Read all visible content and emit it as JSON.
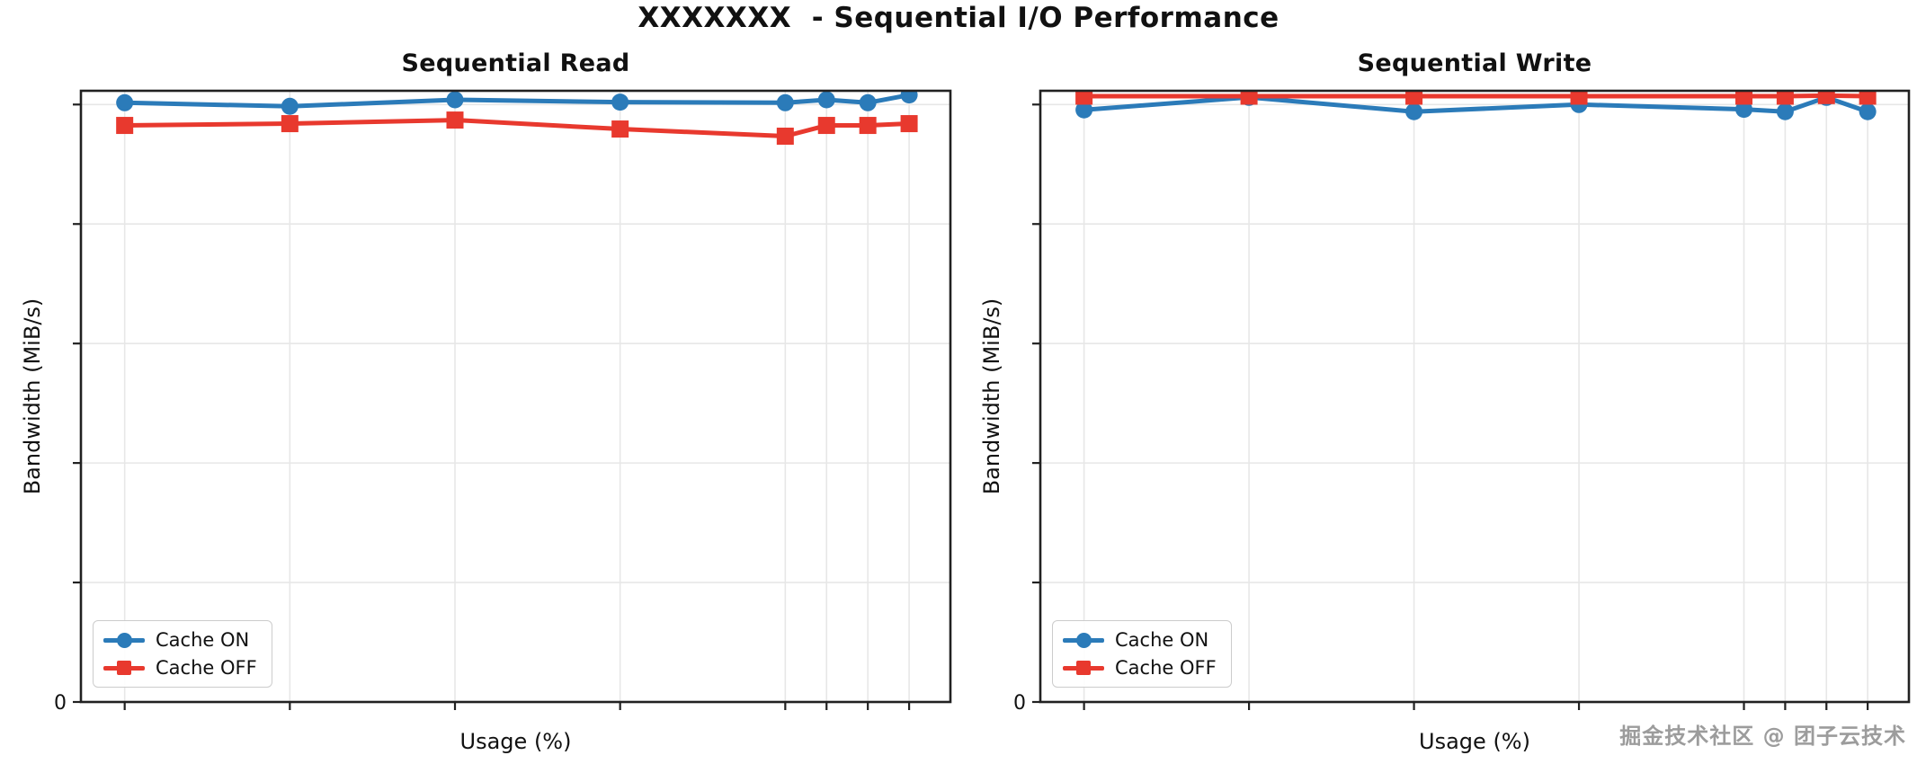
{
  "figure": {
    "title": "XXXXXXX  - Sequential I/O Performance",
    "background": "#ffffff"
  },
  "watermark": {
    "text": "掘金技术社区 @ 团子云技术",
    "color": "#9c9c9c"
  },
  "colors": {
    "cache_on": "#2b7bb9",
    "cache_off": "#e8392e",
    "grid": "#e7e7e7",
    "spine": "#212121",
    "tick_label": "#111111"
  },
  "chart_data": [
    {
      "type": "line",
      "title": "Sequential Read",
      "xlabel": "Usage (%)",
      "ylabel": "Bandwidth (MiB/s)",
      "x": [
        0,
        20,
        40,
        60,
        80,
        85,
        90,
        95
      ],
      "x_tick_labels": [
        "",
        "",
        "",
        "",
        "",
        "",
        "",
        ""
      ],
      "xlim": [
        -5.3,
        100
      ],
      "ylim": [
        0,
        1.023
      ],
      "y_ticks": [
        0,
        0.2,
        0.4,
        0.6,
        0.8,
        1.0
      ],
      "y_tick_labels": [
        "0",
        "",
        "",
        "",
        "",
        ""
      ],
      "y_units_note": "gridline values unlabeled; values normalized to top gridline = 1.0",
      "grid": true,
      "legend_position": "lower-left",
      "series": [
        {
          "name": "Cache ON",
          "marker": "circle",
          "color_key": "cache_on",
          "values": [
            1.003,
            0.997,
            1.008,
            1.004,
            1.003,
            1.008,
            1.003,
            1.016
          ]
        },
        {
          "name": "Cache OFF",
          "marker": "square",
          "color_key": "cache_off",
          "values": [
            0.965,
            0.968,
            0.974,
            0.959,
            0.947,
            0.965,
            0.965,
            0.968
          ]
        }
      ]
    },
    {
      "type": "line",
      "title": "Sequential Write",
      "xlabel": "Usage (%)",
      "ylabel": "Bandwidth (MiB/s)",
      "x": [
        0,
        20,
        40,
        60,
        80,
        85,
        90,
        95
      ],
      "x_tick_labels": [
        "",
        "",
        "",
        "",
        "",
        "",
        "",
        ""
      ],
      "xlim": [
        -5.3,
        100
      ],
      "ylim": [
        0,
        1.023
      ],
      "y_ticks": [
        0,
        0.2,
        0.4,
        0.6,
        0.8,
        1.0
      ],
      "y_tick_labels": [
        "0",
        "",
        "",
        "",
        "",
        ""
      ],
      "y_units_note": "gridline values unlabeled; values normalized to top gridline = 1.0",
      "grid": true,
      "legend_position": "lower-left",
      "series": [
        {
          "name": "Cache ON",
          "marker": "circle",
          "color_key": "cache_on",
          "values": [
            0.991,
            1.012,
            0.988,
            1.0,
            0.992,
            0.988,
            1.012,
            0.988
          ]
        },
        {
          "name": "Cache OFF",
          "marker": "square",
          "color_key": "cache_off",
          "values": [
            1.014,
            1.014,
            1.014,
            1.014,
            1.014,
            1.014,
            1.015,
            1.014
          ]
        }
      ]
    }
  ]
}
